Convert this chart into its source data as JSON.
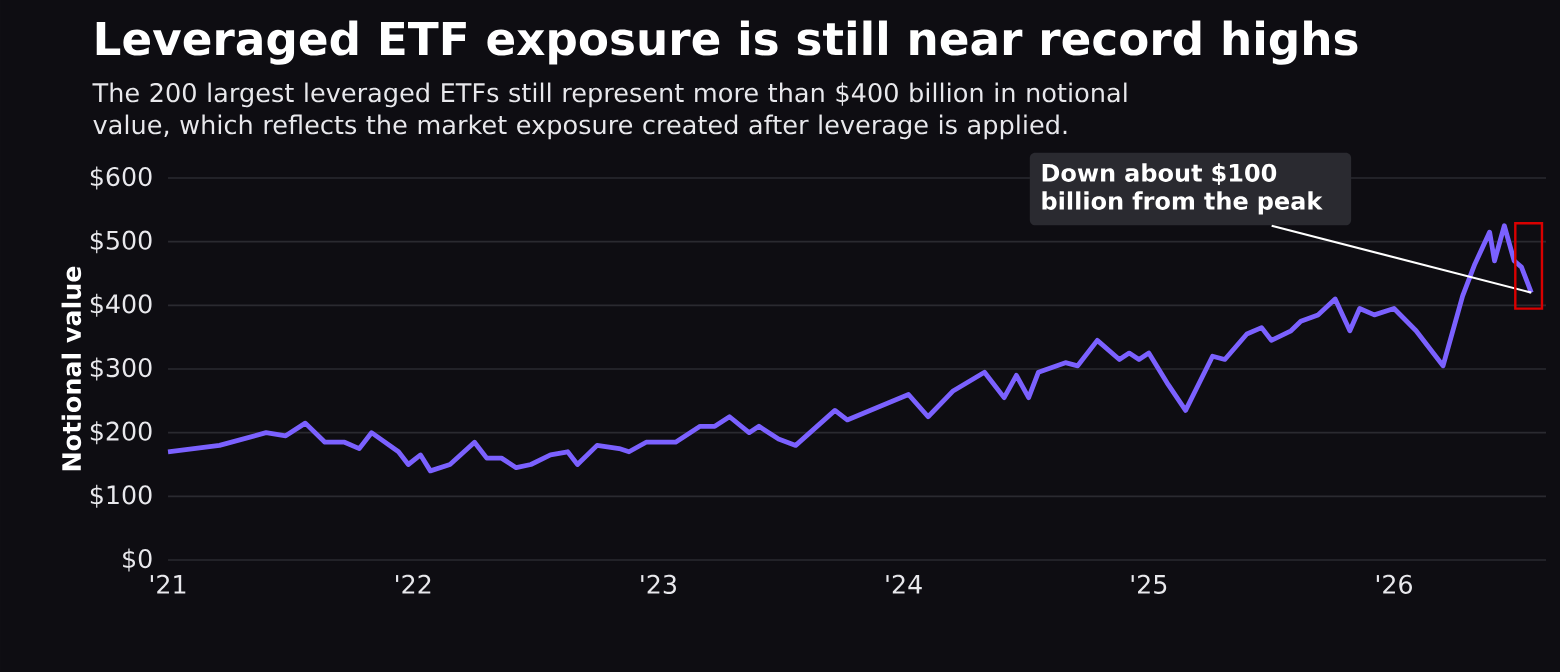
{
  "chart_data": {
    "type": "line",
    "title": "Leveraged ETF exposure is still near record highs",
    "subtitle": "The 200 largest leveraged ETFs still represent more than $400 billion in notional value, which reflects the market exposure created after leverage is applied.",
    "ylabel": "Notional value",
    "x": [
      2021.0,
      2021.21,
      2021.4,
      2021.48,
      2021.56,
      2021.64,
      2021.72,
      2021.78,
      2021.83,
      2021.94,
      2021.98,
      2022.03,
      2022.07,
      2022.15,
      2022.25,
      2022.3,
      2022.36,
      2022.42,
      2022.48,
      2022.56,
      2022.63,
      2022.67,
      2022.75,
      2022.84,
      2022.88,
      2022.95,
      2023.07,
      2023.17,
      2023.23,
      2023.29,
      2023.37,
      2023.41,
      2023.49,
      2023.56,
      2023.72,
      2023.77,
      2024.02,
      2024.1,
      2024.2,
      2024.33,
      2024.41,
      2024.46,
      2024.51,
      2024.55,
      2024.66,
      2024.71,
      2024.79,
      2024.88,
      2024.92,
      2024.96,
      2025.0,
      2025.08,
      2025.15,
      2025.26,
      2025.31,
      2025.4,
      2025.46,
      2025.5,
      2025.58,
      2025.62,
      2025.69,
      2025.76,
      2025.82,
      2025.86,
      2025.92,
      2026.0,
      2026.09,
      2026.2,
      2026.28,
      2026.33,
      2026.39,
      2026.41,
      2026.45,
      2026.49,
      2026.52,
      2026.56
    ],
    "series": [
      {
        "color": "#7b61ff",
        "values": [
          170,
          180,
          200,
          195,
          215,
          185,
          185,
          175,
          200,
          170,
          150,
          165,
          140,
          150,
          185,
          160,
          160,
          145,
          150,
          165,
          170,
          150,
          180,
          175,
          170,
          185,
          185,
          210,
          210,
          225,
          200,
          210,
          190,
          180,
          235,
          220,
          260,
          225,
          265,
          295,
          255,
          290,
          255,
          295,
          310,
          305,
          345,
          315,
          325,
          315,
          325,
          275,
          235,
          320,
          315,
          355,
          365,
          345,
          360,
          375,
          385,
          410,
          360,
          395,
          385,
          395,
          360,
          305,
          415,
          465,
          515,
          470,
          525,
          470,
          460,
          420
        ]
      }
    ],
    "xlim": [
      2021,
      2026.62
    ],
    "ylim": [
      0,
      600
    ],
    "xticks": [
      {
        "value": 2021,
        "label": "'21"
      },
      {
        "value": 2022,
        "label": "'22"
      },
      {
        "value": 2023,
        "label": "'23"
      },
      {
        "value": 2024,
        "label": "'24"
      },
      {
        "value": 2025,
        "label": "'25"
      },
      {
        "value": 2026,
        "label": "'26"
      }
    ],
    "yticks": [
      {
        "value": 0,
        "label": "$0"
      },
      {
        "value": 100,
        "label": "$100"
      },
      {
        "value": 200,
        "label": "$200"
      },
      {
        "value": 300,
        "label": "$300"
      },
      {
        "value": 400,
        "label": "$400"
      },
      {
        "value": 500,
        "label": "$500"
      },
      {
        "value": 600,
        "label": "$600"
      }
    ],
    "grid": "y",
    "annotations": [
      {
        "text": "Down about $100 billion from the peak",
        "x": 2026.56,
        "y": 420
      }
    ]
  }
}
